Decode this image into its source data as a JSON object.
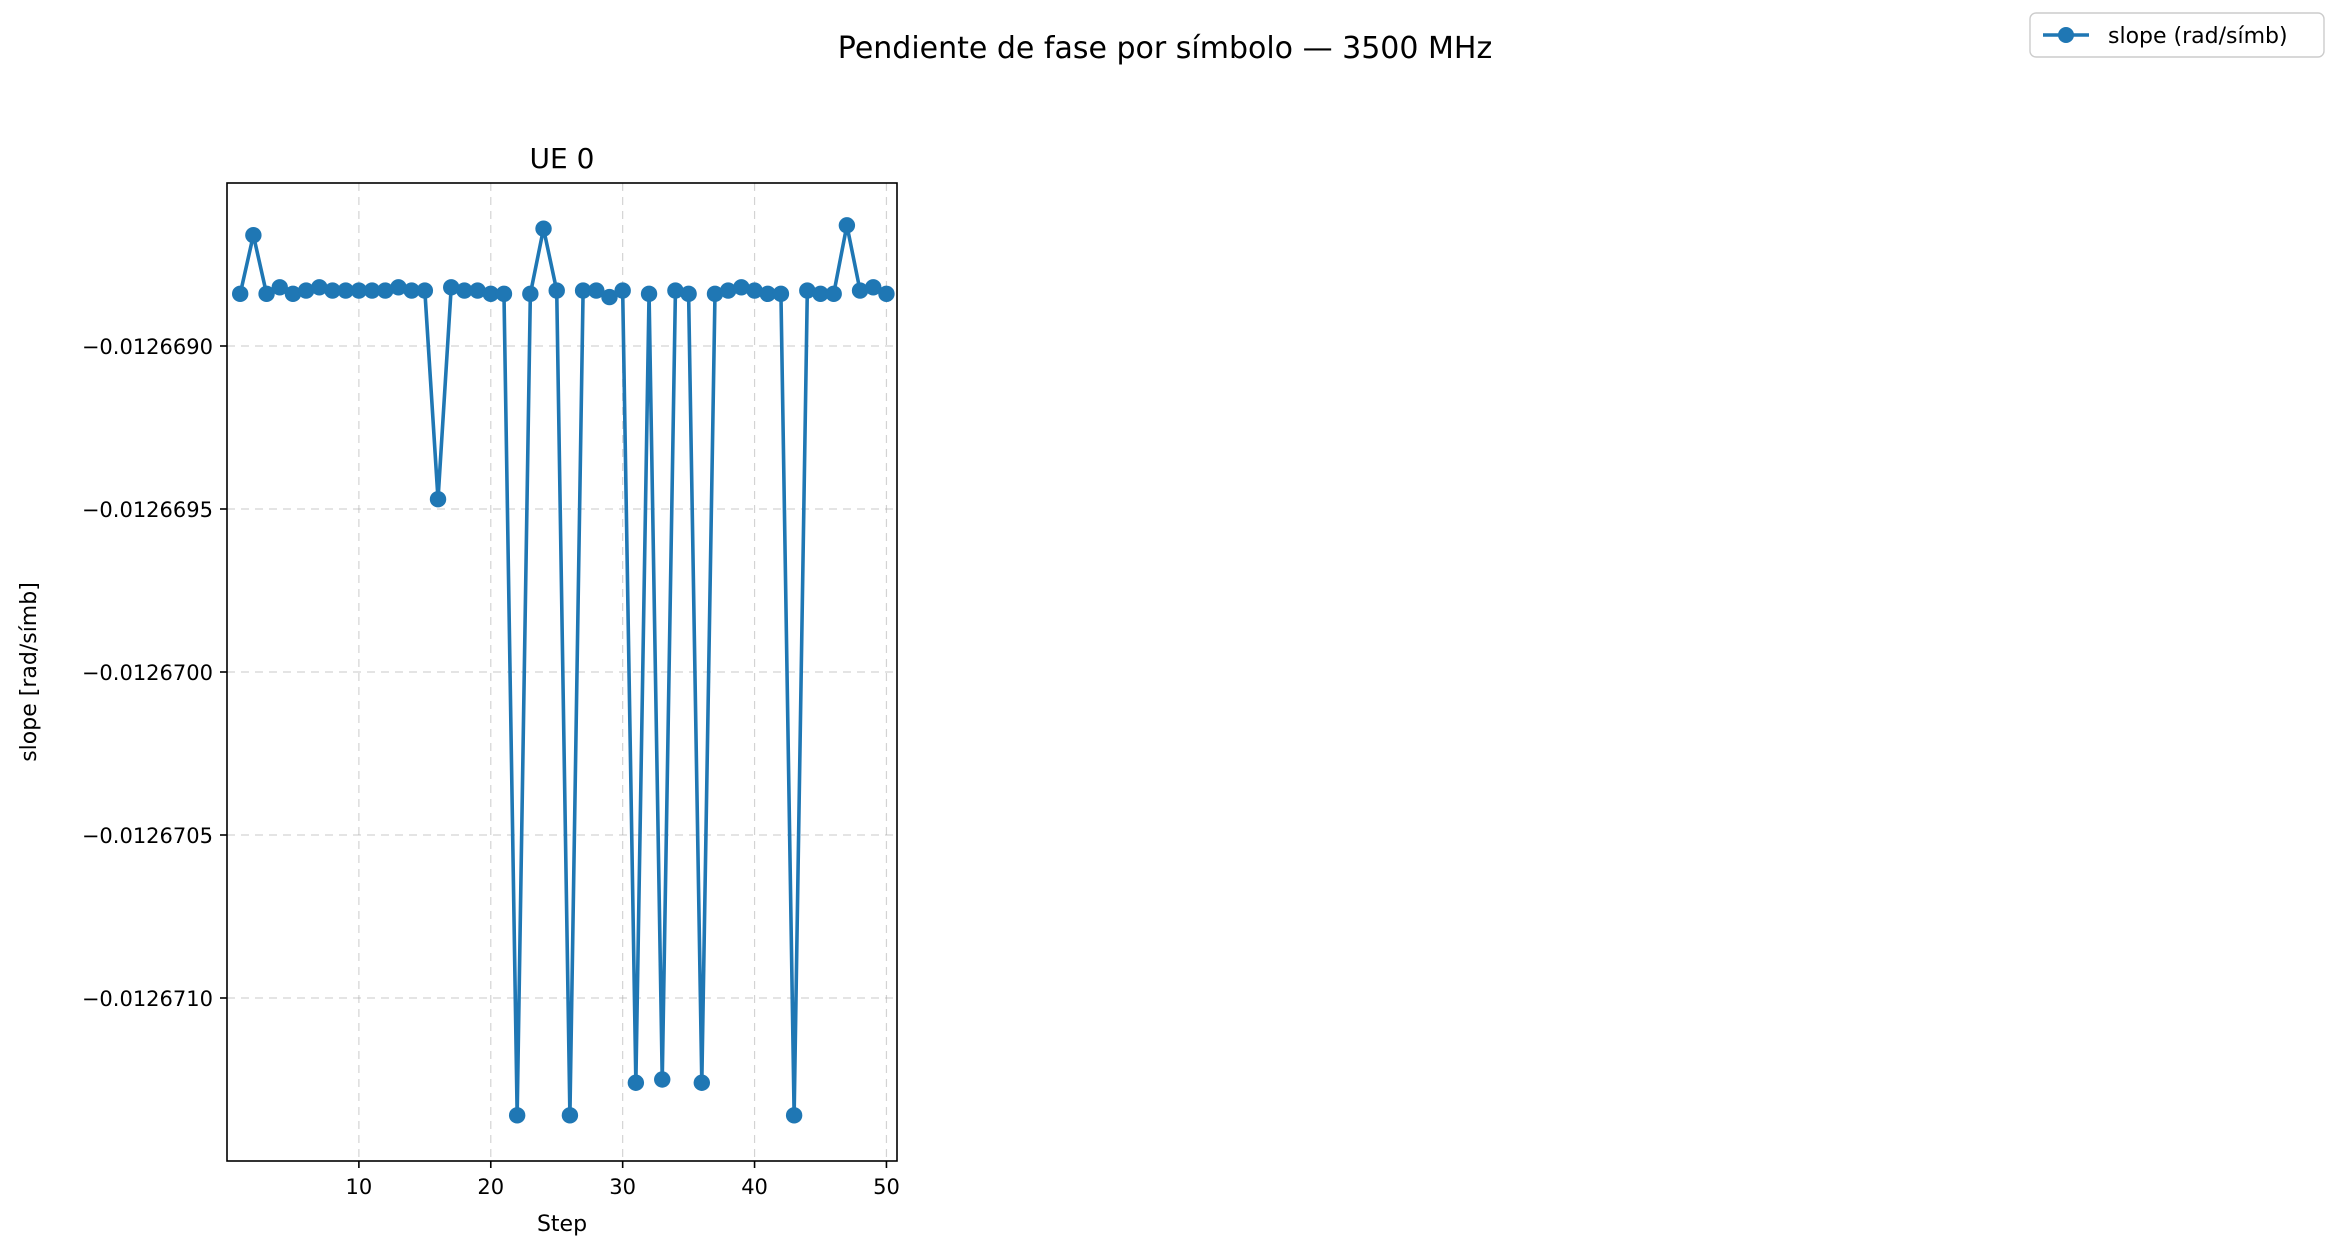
{
  "figure": {
    "suptitle": "Pendiente de fase por símbolo — 3500 MHz",
    "legend_placement": "top-right",
    "colors": {
      "series": "#1f77b4",
      "grid": "#b0b0b0"
    }
  },
  "chart_data": {
    "type": "line",
    "title": "UE 0",
    "xlabel": "Step",
    "ylabel": "slope [rad/símb]",
    "grid": true,
    "markers": true,
    "xlim": [
      0.0,
      50.8
    ],
    "ylim": [
      -0.0126715,
      -0.0126685
    ],
    "xticks": [
      10,
      20,
      30,
      40,
      50
    ],
    "xtick_labels": [
      "10",
      "20",
      "30",
      "40",
      "50"
    ],
    "yticks": [
      -0.012669,
      -0.0126695,
      -0.01267,
      -0.0126705,
      -0.012671
    ],
    "ytick_labels": [
      "−0.0126690",
      "−0.0126695",
      "−0.0126700",
      "−0.0126705",
      "−0.0126710"
    ],
    "series": [
      {
        "name": "slope (rad/símb)",
        "color": "#1f77b4",
        "x": [
          1,
          2,
          3,
          4,
          5,
          6,
          7,
          8,
          9,
          10,
          11,
          12,
          13,
          14,
          15,
          16,
          17,
          18,
          19,
          20,
          21,
          22,
          23,
          24,
          25,
          26,
          27,
          28,
          29,
          30,
          31,
          32,
          33,
          34,
          35,
          36,
          37,
          38,
          39,
          40,
          41,
          42,
          43,
          44,
          45,
          46,
          47,
          48,
          49,
          50
        ],
        "y": [
          -0.01266884,
          -0.01266866,
          -0.01266884,
          -0.01266882,
          -0.01266884,
          -0.01266883,
          -0.01266882,
          -0.01266883,
          -0.01266883,
          -0.01266883,
          -0.01266883,
          -0.01266883,
          -0.01266882,
          -0.01266883,
          -0.01266883,
          -0.01266947,
          -0.01266882,
          -0.01266883,
          -0.01266883,
          -0.01266884,
          -0.01266884,
          -0.01267136,
          -0.01266884,
          -0.01266864,
          -0.01266883,
          -0.01267136,
          -0.01266883,
          -0.01266883,
          -0.01266885,
          -0.01266883,
          -0.01267126,
          -0.01266884,
          -0.01267125,
          -0.01266883,
          -0.01266884,
          -0.01267126,
          -0.01266884,
          -0.01266883,
          -0.01266882,
          -0.01266883,
          -0.01266884,
          -0.01266884,
          -0.01267136,
          -0.01266883,
          -0.01266884,
          -0.01266884,
          -0.01266863,
          -0.01266883,
          -0.01266882,
          -0.01266884
        ]
      }
    ]
  }
}
